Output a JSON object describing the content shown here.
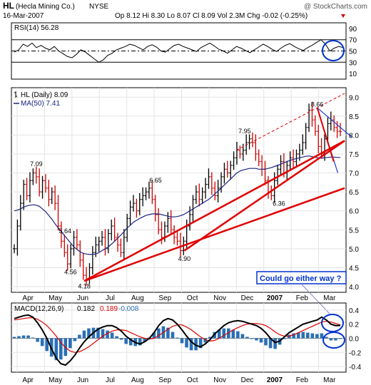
{
  "chart_data": {
    "type": "line",
    "header": {
      "symbol": "HL",
      "company": "(Hecla Mining Co.)",
      "exchange": "NYSE",
      "watermark": "@ StockCharts.com",
      "date": "16-Mar-2007",
      "quote": "Op 8.12  Hi 8.30  Lo 8.07  Cl 8.09  Vol 2.3M  Chg -0.02 (-0.25%)",
      "chg_arrow_color": "#cc0000"
    },
    "rsi": {
      "label": "RSI(14) 56.28",
      "ylim": [
        0,
        100
      ],
      "ticks": [
        90,
        70,
        50,
        30,
        10
      ],
      "tick_labels": [
        "90",
        "70",
        "50",
        "30",
        "10"
      ],
      "overbought": 70,
      "oversold": 30,
      "center": 50,
      "values": [
        48,
        52,
        62,
        58,
        64,
        56,
        60,
        55,
        52,
        58,
        50,
        45,
        40,
        38,
        44,
        52,
        48,
        42,
        36,
        30,
        34,
        42,
        46,
        52,
        55,
        58,
        62,
        60,
        56,
        52,
        58,
        61,
        57,
        50,
        48,
        54,
        60,
        62,
        58,
        55,
        52,
        49,
        56,
        60,
        64,
        59,
        53,
        50,
        46,
        52,
        58,
        55,
        51,
        47,
        52,
        57,
        62,
        58,
        53,
        49,
        55,
        60,
        63,
        58,
        54,
        51,
        56,
        60,
        65,
        70,
        62,
        50,
        55,
        58,
        56
      ]
    },
    "price": {
      "label": "HL (Daily) 8.09",
      "ma_label": "MA(50) 7.41",
      "ylim": [
        3.85,
        9.25
      ],
      "ticks": [
        9.0,
        8.5,
        8.0,
        7.5,
        7.0,
        6.5,
        6.0,
        5.5,
        5.0,
        4.5,
        4.0
      ],
      "tick_labels": [
        "9.0",
        "8.5",
        "8.0",
        "7.5",
        "7.0",
        "6.5",
        "6.0",
        "5.5",
        "5.0",
        "4.5",
        "4.0"
      ],
      "closes": [
        5.0,
        5.6,
        6.2,
        6.7,
        6.4,
        6.8,
        7.0,
        6.9,
        6.5,
        6.8,
        6.6,
        6.3,
        6.5,
        6.2,
        5.6,
        5.2,
        4.9,
        4.6,
        5.0,
        5.3,
        5.1,
        4.7,
        4.3,
        4.2,
        4.5,
        4.9,
        5.1,
        5.2,
        5.3,
        5.0,
        5.4,
        5.6,
        5.3,
        5.1,
        4.9,
        5.3,
        5.8,
        6.1,
        6.2,
        6.0,
        6.3,
        6.4,
        6.5,
        6.6,
        6.3,
        5.9,
        5.5,
        5.3,
        5.6,
        5.8,
        5.5,
        5.3,
        5.2,
        4.95,
        5.2,
        5.6,
        5.9,
        6.3,
        6.5,
        6.3,
        6.5,
        6.7,
        6.9,
        6.6,
        6.4,
        6.6,
        6.9,
        7.1,
        7.0,
        7.2,
        7.4,
        7.6,
        7.5,
        7.6,
        7.8,
        7.9,
        7.8,
        7.5,
        7.3,
        7.1,
        6.8,
        6.5,
        6.4,
        6.8,
        7.1,
        7.3,
        7.0,
        7.2,
        7.4,
        7.3,
        7.5,
        7.6,
        7.8,
        8.2,
        8.66,
        8.4,
        8.1,
        7.7,
        7.5,
        7.9,
        8.3,
        8.4,
        8.2,
        8.1,
        8.09
      ],
      "ma50": [
        6.0,
        6.02,
        6.05,
        6.1,
        6.13,
        6.15,
        6.16,
        6.15,
        6.12,
        6.05,
        5.98,
        5.88,
        5.78,
        5.66,
        5.55,
        5.45,
        5.35,
        5.25,
        5.15,
        5.05,
        4.98,
        4.92,
        4.88,
        4.86,
        4.85,
        4.85,
        4.86,
        4.9,
        4.95,
        5.0,
        5.05,
        5.12,
        5.2,
        5.28,
        5.36,
        5.45,
        5.55,
        5.62,
        5.7,
        5.75,
        5.8,
        5.84,
        5.88,
        5.9,
        5.92,
        5.92,
        5.92,
        5.9,
        5.88,
        5.86,
        5.84,
        5.84,
        5.85,
        5.87,
        5.9,
        5.95,
        6.0,
        6.05,
        6.1,
        6.15,
        6.2,
        6.25,
        6.3,
        6.37,
        6.45,
        6.52,
        6.6,
        6.68,
        6.76,
        6.84,
        6.92,
        7.0,
        7.05,
        7.08,
        7.1,
        7.12,
        7.12,
        7.12,
        7.1,
        7.1,
        7.1,
        7.12,
        7.14,
        7.17,
        7.2,
        7.23,
        7.27,
        7.3,
        7.33,
        7.36,
        7.38,
        7.4,
        7.42,
        7.44,
        7.45,
        7.43,
        7.41,
        7.4,
        7.39,
        7.4,
        7.41,
        7.42,
        7.42,
        7.41,
        7.41
      ],
      "annotations": [
        {
          "label": "7.09",
          "value": 7.09,
          "month_pos": 0.7
        },
        {
          "label": "5.64",
          "value": 5.64,
          "month_pos": 1.75
        },
        {
          "label": "4.56",
          "value": 4.56,
          "month_pos": 1.95
        },
        {
          "label": "4.18",
          "value": 4.18,
          "month_pos": 2.45
        },
        {
          "label": "6.65",
          "value": 6.65,
          "month_pos": 5.05
        },
        {
          "label": "4.90",
          "value": 4.9,
          "month_pos": 6.1
        },
        {
          "label": "7.95",
          "value": 7.95,
          "month_pos": 8.3
        },
        {
          "label": "6.36",
          "value": 6.36,
          "month_pos": 9.55
        },
        {
          "label": "8.66",
          "value": 8.66,
          "month_pos": 10.95
        }
      ],
      "callout": "Could go either way ?"
    },
    "macd": {
      "label": "MACD(12,26,9)",
      "macd_value": "0.182",
      "signal_value": "0.189",
      "hist_value": "-0.008",
      "ylim": [
        -0.48,
        0.5
      ],
      "ticks": [
        0.4,
        0.2,
        0.0,
        -0.2,
        -0.4
      ],
      "tick_labels": [
        "0.4",
        "0.2",
        "0.0",
        "-0.2",
        "-0.4"
      ],
      "macd": [
        0.28,
        0.3,
        0.32,
        0.33,
        0.3,
        0.22,
        0.12,
        0.0,
        -0.15,
        -0.28,
        -0.36,
        -0.38,
        -0.32,
        -0.24,
        -0.14,
        -0.05,
        0.02,
        0.08,
        0.13,
        0.16,
        0.18,
        0.18,
        0.15,
        0.1,
        0.03,
        -0.02,
        -0.06,
        -0.08,
        -0.05,
        0.0,
        0.08,
        0.18,
        0.25,
        0.28,
        0.26,
        0.2,
        0.12,
        0.03,
        -0.05,
        -0.1,
        -0.12,
        -0.08,
        -0.02,
        0.06,
        0.12,
        0.18,
        0.22,
        0.24,
        0.25,
        0.24,
        0.22,
        0.2,
        0.18,
        0.14,
        0.08,
        0.0,
        -0.06,
        -0.04,
        0.02,
        0.08,
        0.12,
        0.16,
        0.2,
        0.22,
        0.24,
        0.26,
        0.3,
        0.26,
        0.2,
        0.18,
        0.182
      ],
      "signal": [
        0.26,
        0.27,
        0.28,
        0.29,
        0.29,
        0.27,
        0.23,
        0.18,
        0.11,
        0.03,
        -0.06,
        -0.13,
        -0.18,
        -0.2,
        -0.19,
        -0.16,
        -0.12,
        -0.07,
        -0.02,
        0.03,
        0.07,
        0.1,
        0.12,
        0.12,
        0.11,
        0.08,
        0.05,
        0.02,
        0.0,
        -0.01,
        0.0,
        0.04,
        0.08,
        0.13,
        0.17,
        0.19,
        0.19,
        0.16,
        0.12,
        0.07,
        0.02,
        -0.02,
        -0.04,
        -0.03,
        0.0,
        0.04,
        0.08,
        0.12,
        0.15,
        0.18,
        0.2,
        0.21,
        0.21,
        0.2,
        0.18,
        0.14,
        0.09,
        0.05,
        0.03,
        0.03,
        0.05,
        0.08,
        0.11,
        0.14,
        0.17,
        0.2,
        0.23,
        0.24,
        0.23,
        0.21,
        0.189
      ]
    },
    "x_axis": {
      "months": [
        "Apr",
        "May",
        "Jun",
        "Jul",
        "Aug",
        "Sep",
        "Oct",
        "Nov",
        "Dec",
        "2007",
        "Feb",
        "Mar"
      ],
      "year_index": 9
    },
    "colors": {
      "up": "#000000",
      "down": "#cc0000",
      "ma": "#1a237e",
      "trend": "#e00000",
      "macd": "#000000",
      "signal": "#dd0000",
      "hist": "#2a6fb5",
      "circle": "#0033cc",
      "channel": "#1f3bd1"
    }
  }
}
